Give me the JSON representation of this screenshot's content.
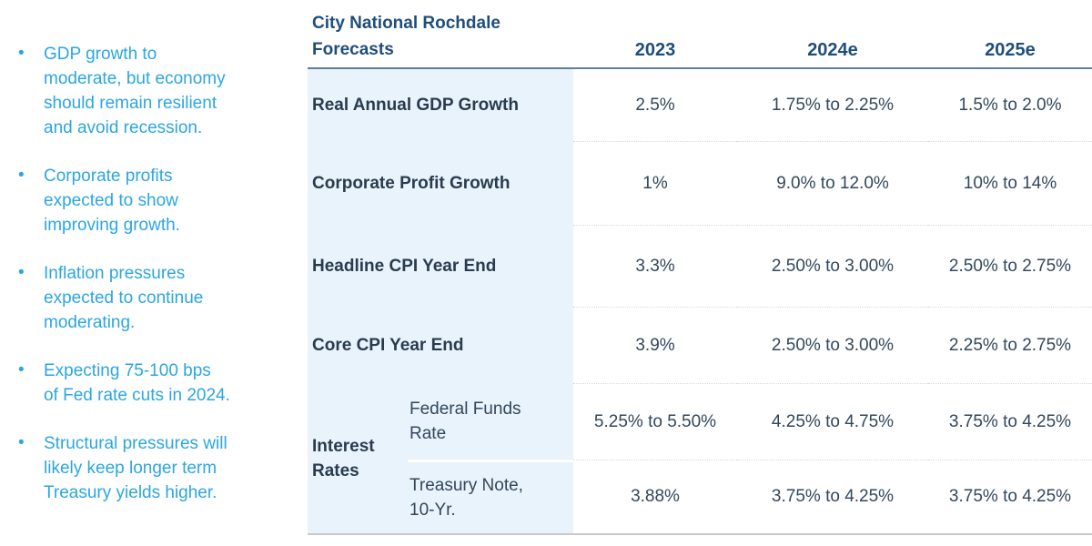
{
  "colors": {
    "bullet_text": "#2ba6e0",
    "title_navy": "#1f4e7c",
    "row_label": "#2a3b4e",
    "value_text": "#33475b",
    "label_column_bg": "#e9f3fb",
    "header_rule": "#5d7fa3",
    "bottom_rule": "#c6cacd",
    "row_divider_dotted": "#d9d9d9"
  },
  "bullets": [
    {
      "lines": [
        "GDP growth to",
        "moderate, but economy",
        "should remain resilient",
        "and avoid recession."
      ]
    },
    {
      "lines": [
        "Corporate profits",
        "expected to show",
        "improving growth."
      ]
    },
    {
      "lines": [
        "Inflation pressures",
        "expected to continue",
        "moderating."
      ]
    },
    {
      "lines": [
        "Expecting 75-100 bps",
        "of Fed rate cuts in 2024."
      ]
    },
    {
      "lines": [
        "Structural pressures will",
        "likely keep longer term",
        "Treasury yields higher."
      ]
    }
  ],
  "table": {
    "title": "City National Rochdale Forecasts",
    "columns": [
      "2023",
      "2024e",
      "2025e"
    ],
    "rows": [
      {
        "label": "Real Annual GDP Growth",
        "values": [
          "2.5%",
          "1.75% to 2.25%",
          "1.5% to 2.0%"
        ]
      },
      {
        "label": "Corporate Profit Growth",
        "values": [
          "1%",
          "9.0% to 12.0%",
          "10% to 14%"
        ]
      },
      {
        "label": "Headline CPI Year End",
        "values": [
          "3.3%",
          "2.50% to 3.00%",
          "2.50% to 2.75%"
        ]
      },
      {
        "label": "Core CPI Year End",
        "values": [
          "3.9%",
          "2.50% to 3.00%",
          "2.25% to 2.75%"
        ]
      }
    ],
    "interest_rates_group": {
      "label": "Interest Rates",
      "rows": [
        {
          "label": "Federal Funds Rate",
          "values": [
            "5.25% to 5.50%",
            "4.25% to 4.75%",
            "3.75% to 4.25%"
          ]
        },
        {
          "label": "Treasury Note, 10-Yr.",
          "values": [
            "3.88%",
            "3.75% to 4.25%",
            "3.75% to 4.25%"
          ]
        }
      ]
    }
  }
}
